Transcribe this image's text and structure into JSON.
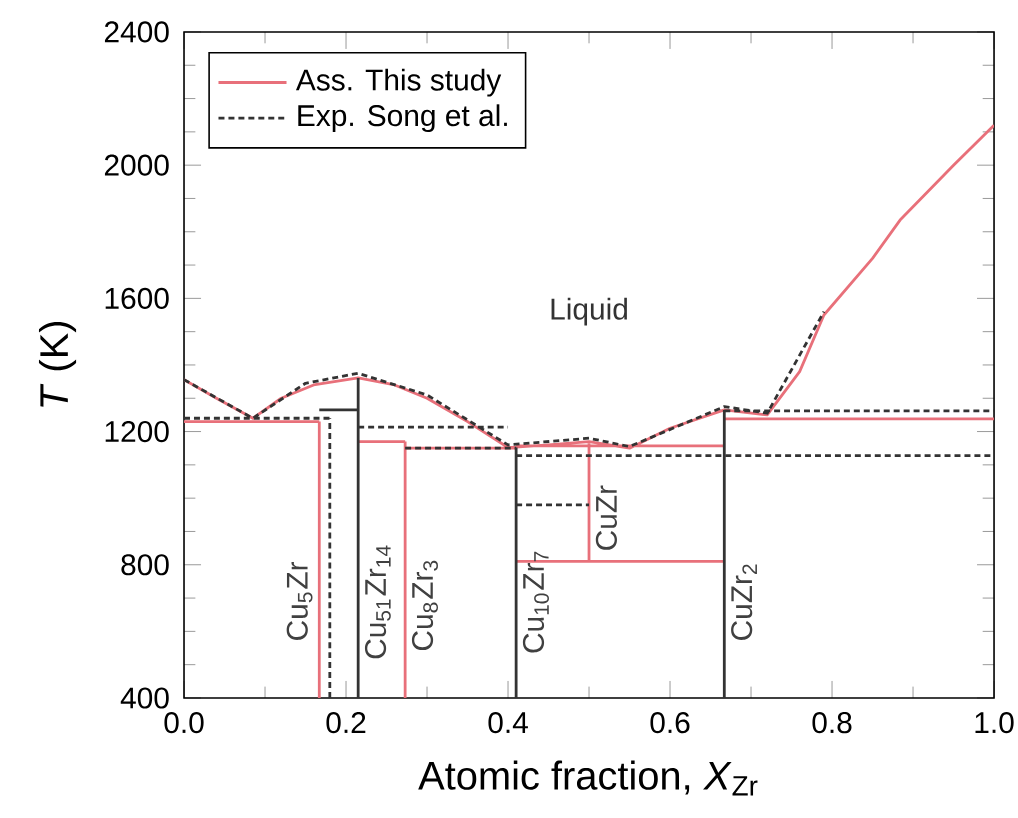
{
  "chart_data": {
    "type": "line",
    "xlabel": "Atomic fraction, *X*$_{Zr}$",
    "ylabel": "*T* (K)",
    "xlim": [
      0,
      1
    ],
    "ylim": [
      400,
      2400
    ],
    "xticks": [
      {
        "value": 0,
        "label": "0.0"
      },
      {
        "value": 0.2,
        "label": "0.2"
      },
      {
        "value": 0.4,
        "label": "0.4"
      },
      {
        "value": 0.6,
        "label": "0.6"
      },
      {
        "value": 0.8,
        "label": "0.8"
      },
      {
        "value": 1,
        "label": "1.0"
      }
    ],
    "yticks": [
      400,
      800,
      1200,
      1600,
      2000,
      2400
    ],
    "legend": "top left",
    "marker": "none",
    "series": [
      {
        "name": "Ass. This study",
        "color": "#e8707a",
        "line_style": "solid",
        "x": [
          0,
          0.04,
          0.085,
          0.12,
          0.16,
          0.215,
          0.26,
          0.3,
          0.35,
          0.4,
          0.45,
          0.5,
          0.55,
          0.6,
          0.667,
          0.72,
          0.76,
          0.79,
          0.85,
          0.884,
          0.95,
          1.0,
          null,
          0,
          0.167,
          null,
          0.167,
          0.167,
          null,
          0.215,
          0.273,
          null,
          0.273,
          0.273,
          null,
          0.273,
          0.41,
          null,
          0.41,
          0.667,
          null,
          0.667,
          1.0
        ],
        "values": [
          1356,
          1300,
          1240,
          1300,
          1340,
          1361,
          1340,
          1300,
          1230,
          1152,
          1160,
          1170,
          1150,
          1210,
          1265,
          1250,
          1380,
          1550,
          1720,
          1835,
          2000,
          2120,
          null,
          1230,
          1230,
          null,
          400,
          1230,
          null,
          1170,
          1170,
          null,
          400,
          1170,
          null,
          1150,
          1150,
          null,
          1157,
          1157,
          null,
          1238,
          1238
        ]
      },
      {
        "color": "#e8707a",
        "line_style": "solid",
        "x": [
          0.41,
          0.667,
          null,
          0.5,
          0.5
        ],
        "values": [
          810,
          810,
          null,
          810,
          1165
        ]
      },
      {
        "name": "Exp. Song et al.",
        "color": "#333333",
        "line_style": "dotted",
        "x": [
          0,
          0.085,
          0.15,
          0.215,
          0.3,
          0.4,
          0.5,
          0.55,
          0.667,
          0.72,
          0.79,
          null,
          0,
          0.18,
          null,
          0.18,
          0.18,
          null,
          0.215,
          0.4,
          null,
          0.273,
          0.41,
          null,
          0.41,
          0.5,
          null,
          0.667,
          1.0,
          null,
          0.41,
          1.0
        ],
        "values": [
          1356,
          1240,
          1345,
          1375,
          1310,
          1160,
          1180,
          1155,
          1275,
          1255,
          1560,
          null,
          1240,
          1240,
          null,
          400,
          1240,
          null,
          1213,
          1213,
          null,
          1150,
          1150,
          null,
          980,
          980,
          null,
          1262,
          1262,
          null,
          1128,
          1128
        ]
      },
      {
        "color": "#333333",
        "line_style": "solid",
        "x": [
          0.215,
          0.215,
          null,
          0.41,
          0.41,
          null,
          0.667,
          0.667,
          null,
          0.167,
          0.215
        ],
        "values": [
          400,
          1361,
          null,
          400,
          1152,
          null,
          400,
          1265,
          null,
          1265,
          1265
        ]
      }
    ],
    "annotations": [
      "Liquid",
      {
        "text": "Cu$_{5}$Zr",
        "x": 0.167,
        "y": 690
      },
      {
        "text": "Cu$_{51}$Zr$_{14}$",
        "x": 0.215,
        "y": 690
      },
      {
        "text": "Cu$_{8}$Zr$_{3}$",
        "x": 0.273,
        "y": 680
      },
      {
        "text": "Cu$_{10}$Zr$_{7}$",
        "x": 0.41,
        "y": 690
      },
      {
        "text": "CuZr",
        "x": 0.5,
        "y": 940
      },
      {
        "text": "CuZr$_{2}$",
        "x": 0.667,
        "y": 690
      }
    ]
  }
}
